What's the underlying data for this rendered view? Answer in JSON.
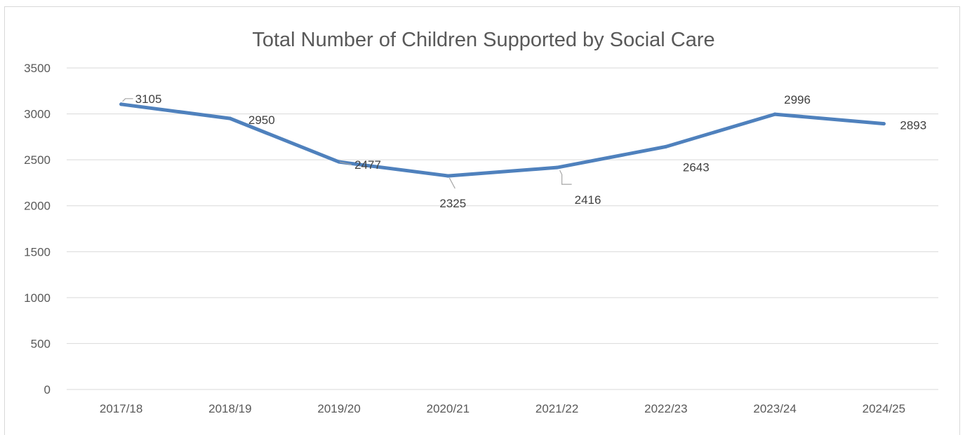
{
  "chart_data": {
    "type": "line",
    "title": "Total Number of Children Supported by Social Care",
    "xlabel": "",
    "ylabel": "",
    "categories": [
      "2017/18",
      "2018/19",
      "2019/20",
      "2020/21",
      "2021/22",
      "2022/23",
      "2023/24",
      "2024/25"
    ],
    "series": [
      {
        "values": [
          3105,
          2950,
          2477,
          2325,
          2416,
          2643,
          2996,
          2893
        ],
        "data_labels": [
          "3105",
          "2950",
          "2477",
          "2325",
          "2416",
          "2643",
          "2996",
          "2893"
        ],
        "color": "#4f81bd"
      }
    ],
    "ylim": [
      0,
      3500
    ],
    "yticks": [
      0,
      500,
      1000,
      1500,
      2000,
      2500,
      3000,
      3500
    ],
    "ytick_labels": [
      "0",
      "500",
      "1000",
      "1500",
      "2000",
      "2500",
      "3000",
      "3500"
    ],
    "grid": true,
    "legend": "none"
  }
}
